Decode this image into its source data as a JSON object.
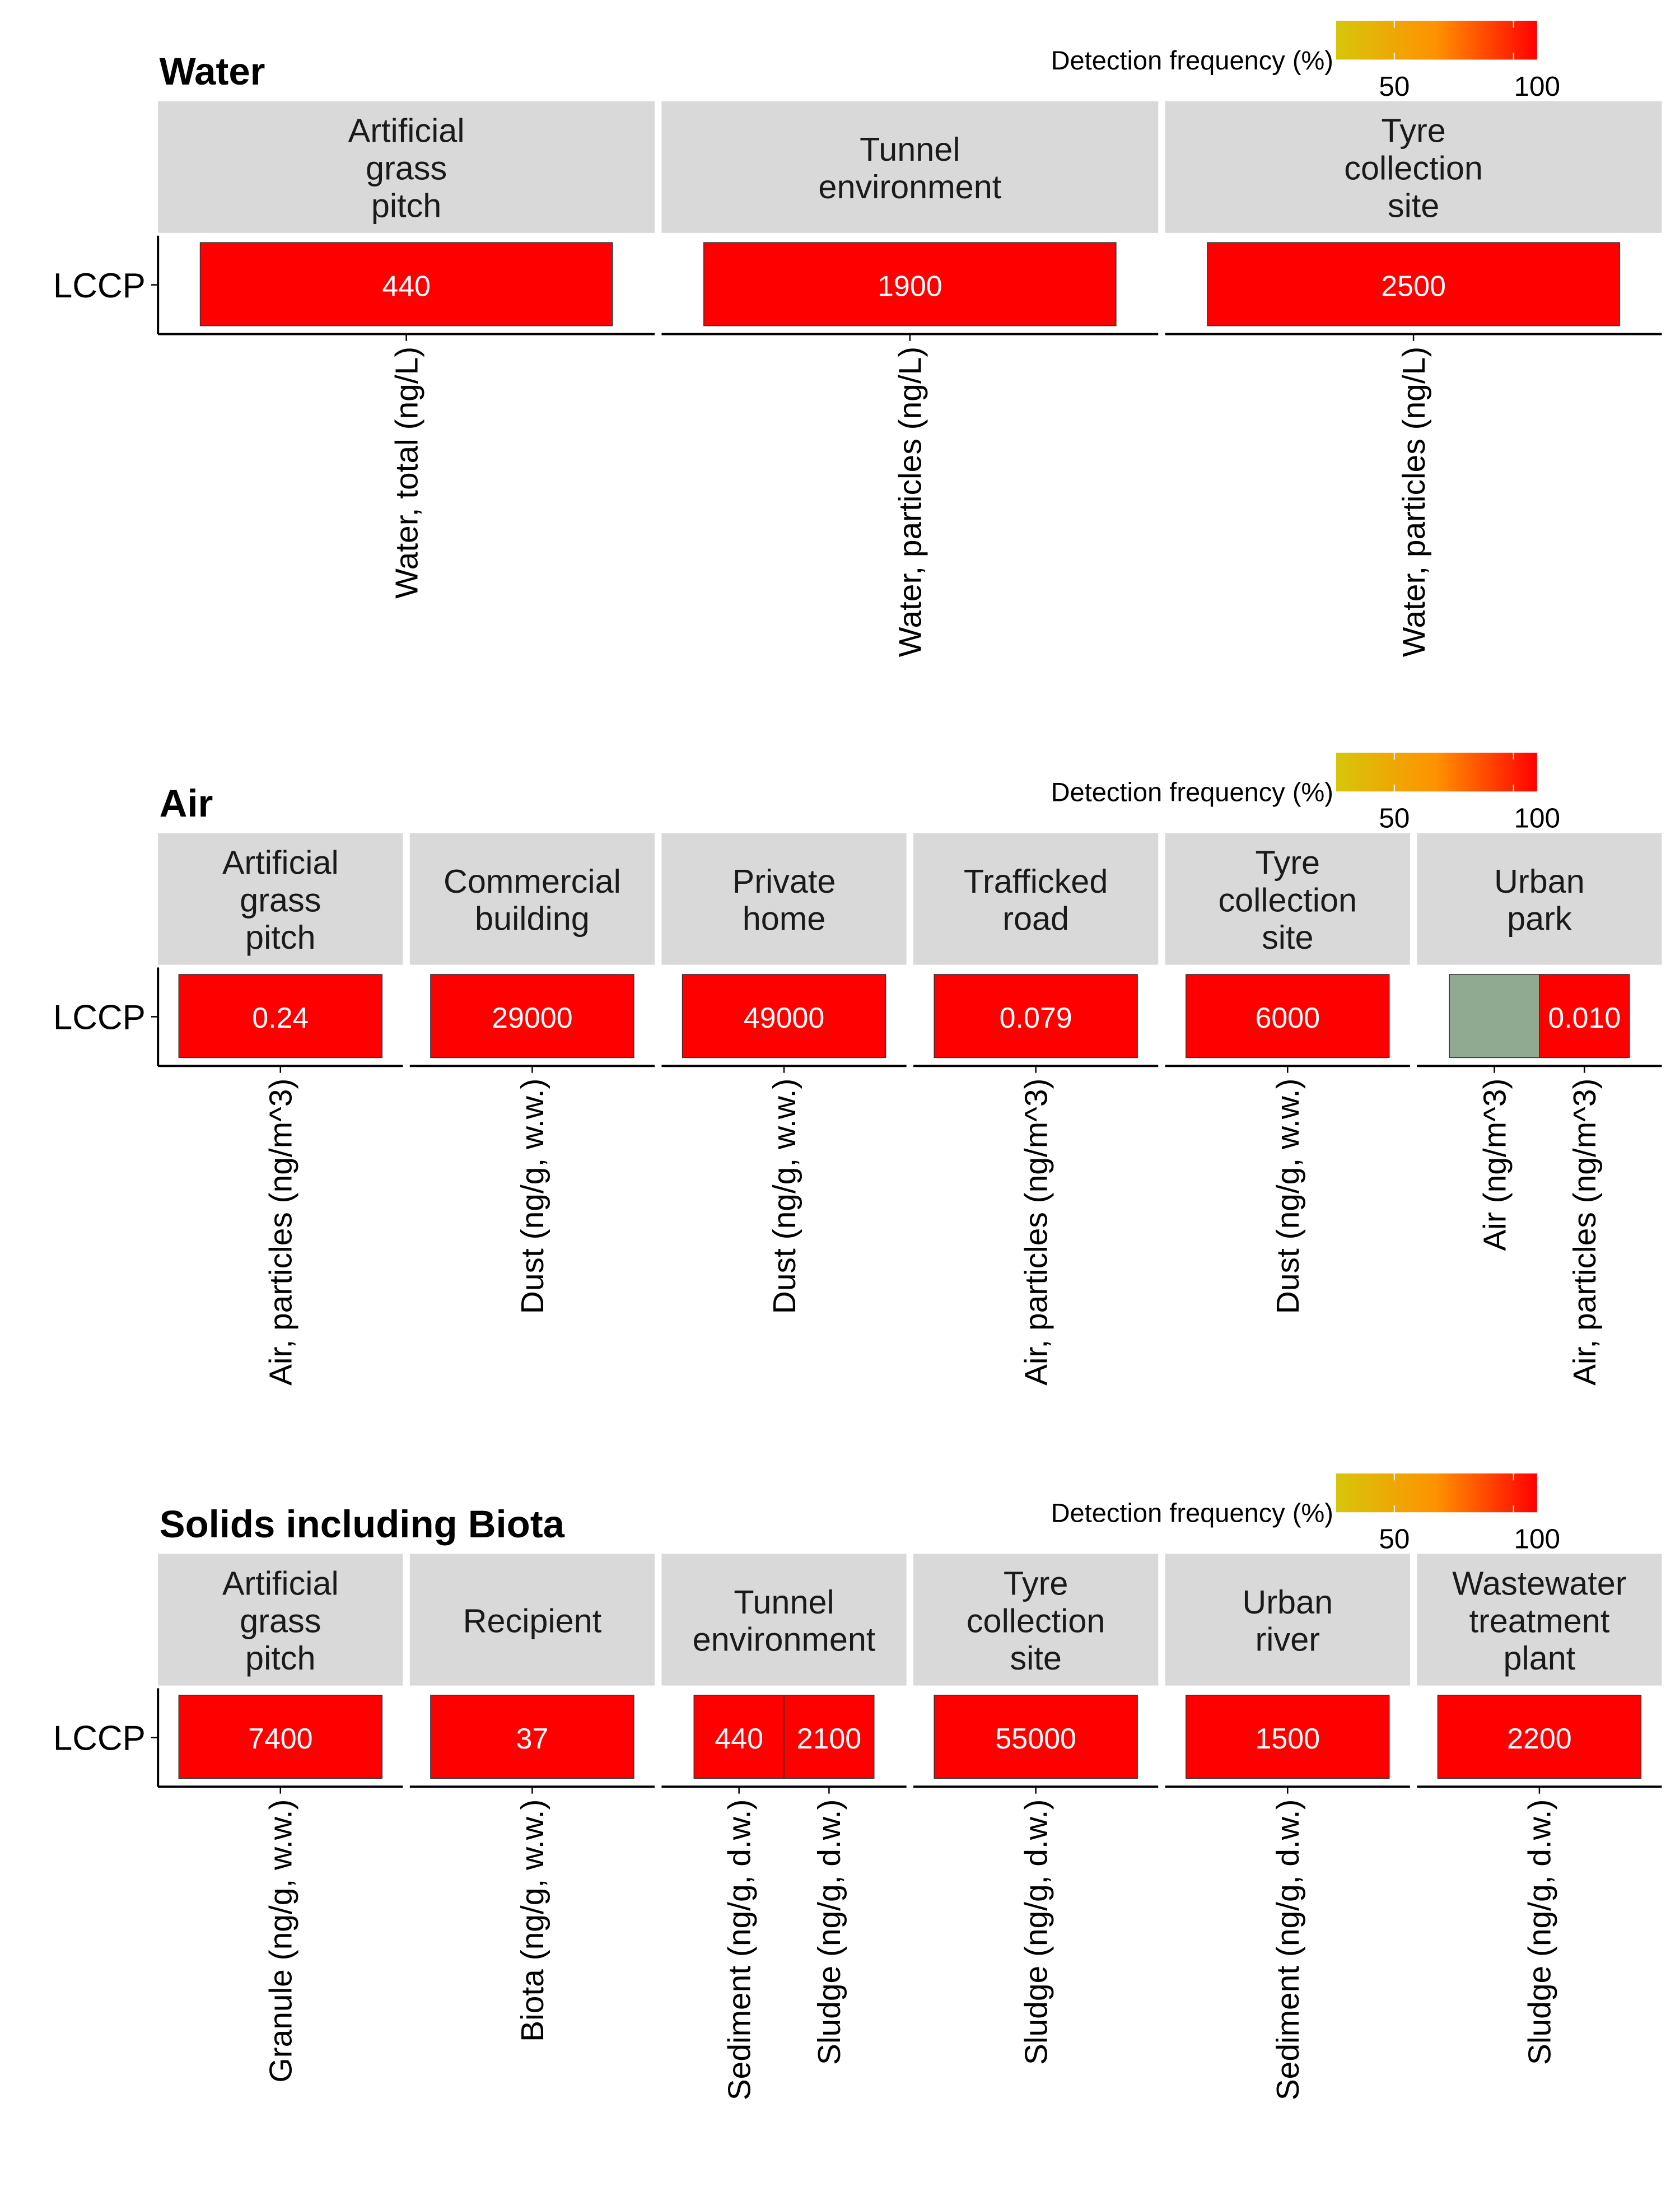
{
  "chart_data": [
    {
      "type": "heatmap",
      "title": "Water",
      "legend": {
        "title": "Detection frequency (%)",
        "ticks": [
          "50",
          "100"
        ],
        "colors": [
          "#d6c60a",
          "#ff9100",
          "#ff0000"
        ],
        "placement": "top-right"
      },
      "y_categories": [
        "LCCP"
      ],
      "panels": [
        {
          "facet": "Artificial\ngrass\npitch",
          "cells": [
            {
              "x": "Water, total (ng/L)",
              "label": "440",
              "color": "#ff0000"
            }
          ]
        },
        {
          "facet": "Tunnel\nenvironment",
          "cells": [
            {
              "x": "Water, particles (ng/L)",
              "label": "1900",
              "color": "#ff0000"
            }
          ]
        },
        {
          "facet": "Tyre\ncollection\nsite",
          "cells": [
            {
              "x": "Water, particles (ng/L)",
              "label": "2500",
              "color": "#ff0000"
            }
          ]
        }
      ]
    },
    {
      "type": "heatmap",
      "title": "Air",
      "legend": {
        "title": "Detection frequency (%)",
        "ticks": [
          "50",
          "100"
        ],
        "colors": [
          "#d6c60a",
          "#ff9100",
          "#ff0000"
        ],
        "placement": "top-right"
      },
      "y_categories": [
        "LCCP"
      ],
      "panels": [
        {
          "facet": "Artificial\ngrass\npitch",
          "cells": [
            {
              "x": "Air, particles (ng/m^3)",
              "label": "0.24",
              "color": "#ff0000"
            }
          ]
        },
        {
          "facet": "Commercial\nbuilding",
          "cells": [
            {
              "x": "Dust (ng/g, w.w.)",
              "label": "29000",
              "color": "#ff0000"
            }
          ]
        },
        {
          "facet": "Private\nhome",
          "cells": [
            {
              "x": "Dust (ng/g, w.w.)",
              "label": "49000",
              "color": "#ff0000"
            }
          ]
        },
        {
          "facet": "Trafficked\nroad",
          "cells": [
            {
              "x": "Air, particles (ng/m^3)",
              "label": "0.079",
              "color": "#ff0000"
            }
          ]
        },
        {
          "facet": "Tyre\ncollection\nsite",
          "cells": [
            {
              "x": "Dust (ng/g, w.w.)",
              "label": "6000",
              "color": "#ff0000"
            }
          ]
        },
        {
          "facet": "Urban\npark",
          "cells": [
            {
              "x": "Air (ng/m^3)",
              "label": "",
              "color": "#8faa91"
            },
            {
              "x": "Air, particles (ng/m^3)",
              "label": "0.010",
              "color": "#ff0000"
            }
          ]
        }
      ]
    },
    {
      "type": "heatmap",
      "title": "Solids including Biota",
      "legend": {
        "title": "Detection frequency (%)",
        "ticks": [
          "50",
          "100"
        ],
        "colors": [
          "#d6c60a",
          "#ff9100",
          "#ff0000"
        ],
        "placement": "top-right"
      },
      "y_categories": [
        "LCCP"
      ],
      "panels": [
        {
          "facet": "Artificial\ngrass\npitch",
          "cells": [
            {
              "x": "Granule (ng/g, w.w.)",
              "label": "7400",
              "color": "#ff0000"
            }
          ]
        },
        {
          "facet": "Recipient",
          "cells": [
            {
              "x": "Biota (ng/g, w.w.)",
              "label": "37",
              "color": "#ff0000"
            }
          ]
        },
        {
          "facet": "Tunnel\nenvironment",
          "cells": [
            {
              "x": "Sediment (ng/g, d.w.)",
              "label": "440",
              "color": "#ff0000"
            },
            {
              "x": "Sludge (ng/g, d.w.)",
              "label": "2100",
              "color": "#ff0000"
            }
          ]
        },
        {
          "facet": "Tyre\ncollection\nsite",
          "cells": [
            {
              "x": "Sludge (ng/g, d.w.)",
              "label": "55000",
              "color": "#ff0000"
            }
          ]
        },
        {
          "facet": "Urban\nriver",
          "cells": [
            {
              "x": "Sediment (ng/g, d.w.)",
              "label": "1500",
              "color": "#ff0000"
            }
          ]
        },
        {
          "facet": "Wastewater\ntreatment\nplant",
          "cells": [
            {
              "x": "Sludge (ng/g, d.w.)",
              "label": "2200",
              "color": "#ff0000"
            }
          ]
        }
      ]
    }
  ]
}
